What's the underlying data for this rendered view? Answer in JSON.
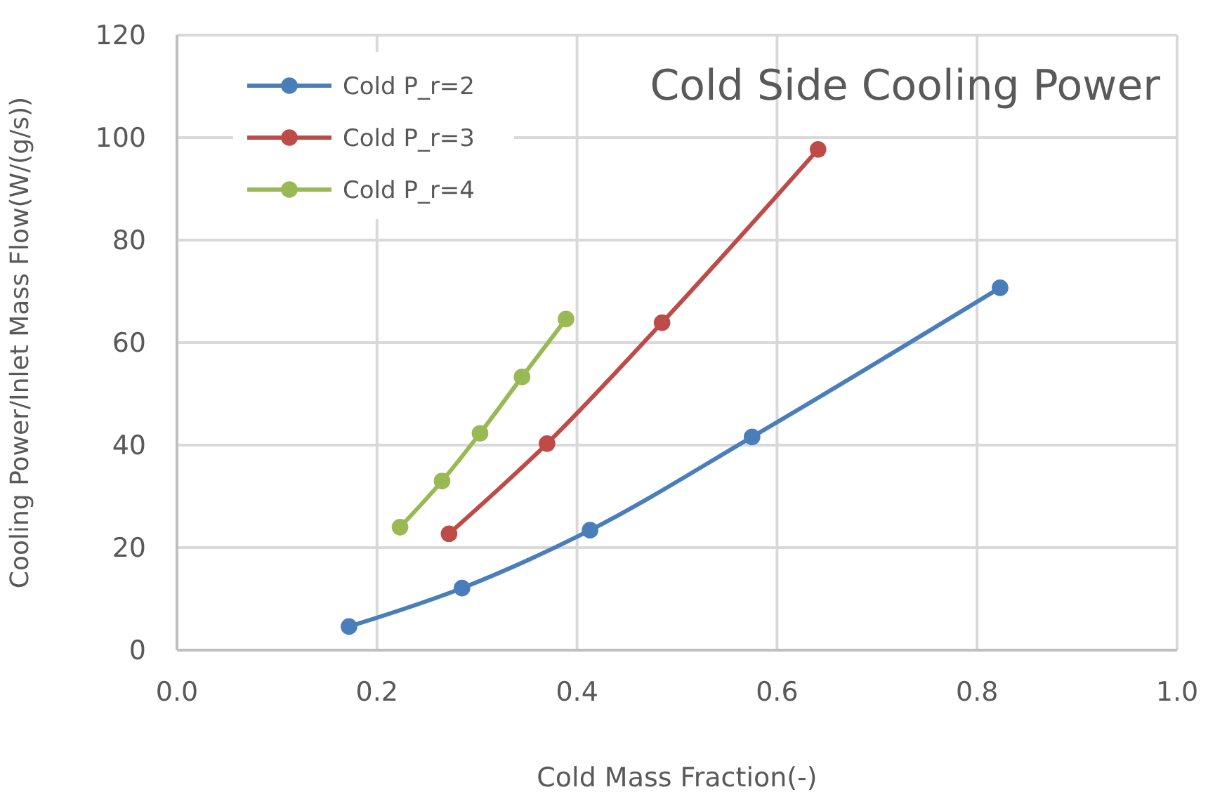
{
  "chart_data": {
    "type": "line",
    "title": "Cold Side Cooling Power",
    "xlabel": "Cold Mass Fraction(-)",
    "ylabel": "Cooling Power/Inlet Mass Flow(W/(g/s))",
    "series": [
      {
        "name": "Cold P_r=2",
        "color": "#4a7ebb",
        "x": [
          0.172,
          0.285,
          0.413,
          0.575,
          0.823
        ],
        "values": [
          4.6,
          12.1,
          23.4,
          41.6,
          70.7
        ]
      },
      {
        "name": "Cold P_r=3",
        "color": "#be4b48",
        "x": [
          0.272,
          0.37,
          0.485,
          0.641
        ],
        "values": [
          22.7,
          40.3,
          63.9,
          97.7
        ]
      },
      {
        "name": "Cold P_r=4",
        "color": "#98b954",
        "x": [
          0.223,
          0.265,
          0.303,
          0.345,
          0.389
        ],
        "values": [
          24.0,
          33.0,
          42.3,
          53.3,
          64.6
        ]
      }
    ],
    "xlim": [
      0,
      1
    ],
    "xticks": [
      {
        "value": 0,
        "label": "0.0"
      },
      {
        "value": 0.2,
        "label": "0.2"
      },
      {
        "value": 0.4,
        "label": "0.4"
      },
      {
        "value": 0.6,
        "label": "0.6"
      },
      {
        "value": 0.8,
        "label": "0.8"
      },
      {
        "value": 1,
        "label": "1.0"
      }
    ],
    "ylim": [
      0,
      120
    ],
    "yticks": [
      0,
      20,
      40,
      60,
      80,
      100,
      120
    ],
    "grid": true,
    "legend": "top left",
    "marker": "circle",
    "line_style": "solid"
  }
}
